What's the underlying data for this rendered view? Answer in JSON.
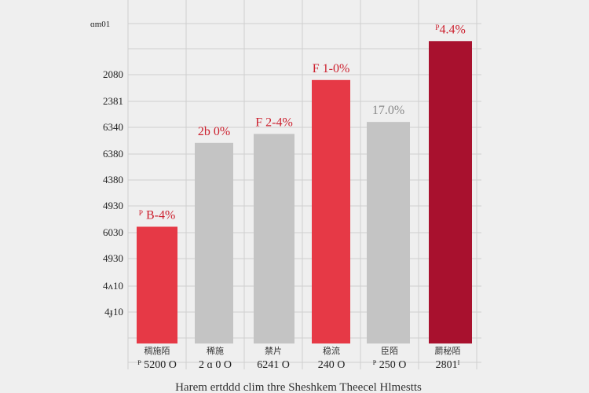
{
  "colors": {
    "red": "#e63946",
    "dark_red": "#a8112e",
    "gray": "#c4c4c4",
    "label_red": "#cc1f2d",
    "label_gray": "#8a8a8a",
    "grid": "#cfcfcf",
    "background": "#efefef"
  },
  "chart_data": {
    "type": "bar",
    "title": "",
    "caption": "Harem ertddd clim thre Sheshkem Theecel Hlmestts",
    "xlabel": "",
    "ylabel": "",
    "y_axis_top_label": "ɑm01",
    "y_ticks": [
      "",
      "2080",
      "2381",
      "6340",
      "6380",
      "4380",
      "4930",
      "6030",
      "4930",
      "4ʌ10",
      "4ɟ10"
    ],
    "grid": true,
    "categories": [
      {
        "label_top": "稠施陌",
        "label_bottom": "ᴾ 5200  O"
      },
      {
        "label_top": "稀施",
        "label_bottom": "2 ɑ 0  O"
      },
      {
        "label_top": "禁片",
        "label_bottom": "6241 O"
      },
      {
        "label_top": "稳流",
        "label_bottom": "240 O"
      },
      {
        "label_top": "臣陌",
        "label_bottom": "ᴾ 250 O"
      },
      {
        "label_top": "罽秘陌",
        "label_bottom": "2801ᴵ"
      }
    ],
    "values": [
      1.95,
      3.35,
      3.5,
      4.4,
      3.7,
      5.05
    ],
    "value_labels": [
      "ᴾ B-4%",
      "2b 0%",
      "F 2-4%",
      "F 1-0%",
      "17.0%",
      "ᴾ4.4%"
    ],
    "bar_colors": [
      "red",
      "gray",
      "gray",
      "red",
      "gray",
      "dark_red"
    ],
    "label_colors": [
      "label_red",
      "label_red",
      "label_red",
      "label_red",
      "label_gray",
      "label_red"
    ],
    "ylim": [
      0,
      5.5
    ]
  }
}
